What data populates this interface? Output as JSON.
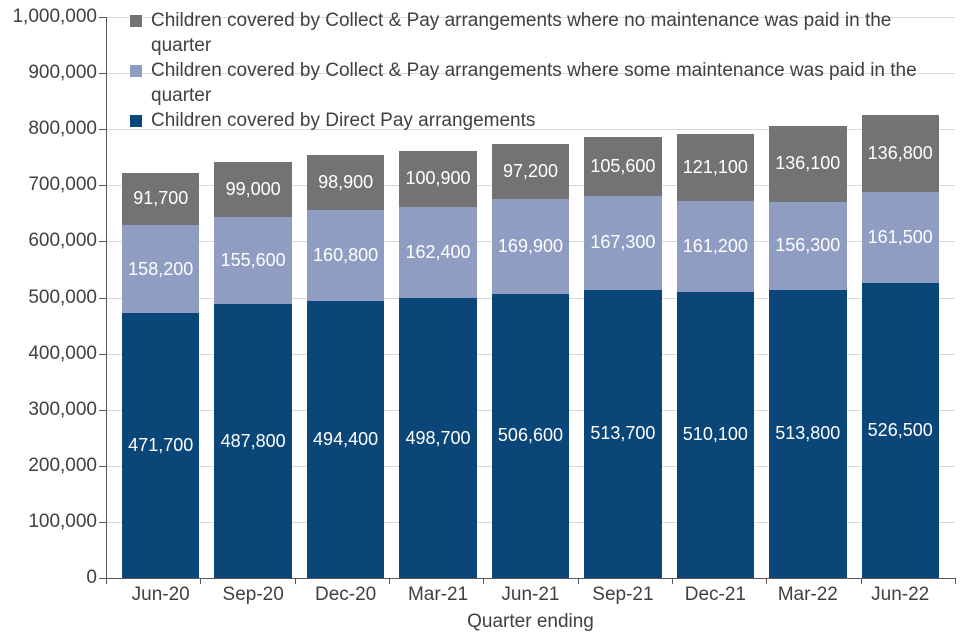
{
  "chart_data": {
    "type": "bar",
    "stacked": true,
    "title": "",
    "xlabel": "Quarter ending",
    "ylabel": "",
    "ylim": [
      0,
      1000000
    ],
    "ytick_interval": 100000,
    "ytick_labels": [
      "0",
      "100,000",
      "200,000",
      "300,000",
      "400,000",
      "500,000",
      "600,000",
      "700,000",
      "800,000",
      "900,000",
      "1,000,000"
    ],
    "grid": true,
    "legend_position": "top-left-inside",
    "categories": [
      "Jun-20",
      "Sep-20",
      "Dec-20",
      "Mar-21",
      "Jun-21",
      "Sep-21",
      "Dec-21",
      "Mar-22",
      "Jun-22"
    ],
    "series": [
      {
        "key": "direct-pay",
        "name": "Children covered by Direct Pay arrangements",
        "color": "#0A4778",
        "values": [
          471700,
          487800,
          494400,
          498700,
          506600,
          513700,
          510100,
          513800,
          526500
        ]
      },
      {
        "key": "collect-pay-some",
        "name": "Children covered by Collect & Pay arrangements where some maintenance was paid in the quarter",
        "color": "#8F9DC3",
        "values": [
          158200,
          155600,
          160800,
          162400,
          169900,
          167300,
          161200,
          156300,
          161500
        ]
      },
      {
        "key": "collect-pay-none",
        "name": "Children covered by Collect & Pay arrangements where no maintenance was paid in the quarter",
        "color": "#737373",
        "values": [
          91700,
          99000,
          98900,
          100900,
          97200,
          105600,
          121100,
          136100,
          136800
        ]
      }
    ]
  },
  "colors": {
    "background": "#FFFFFF",
    "axis_text": "#404040",
    "axis_line": "#595959",
    "gridline": "#D9D9D9",
    "bar_label": "#FFFFFF"
  }
}
